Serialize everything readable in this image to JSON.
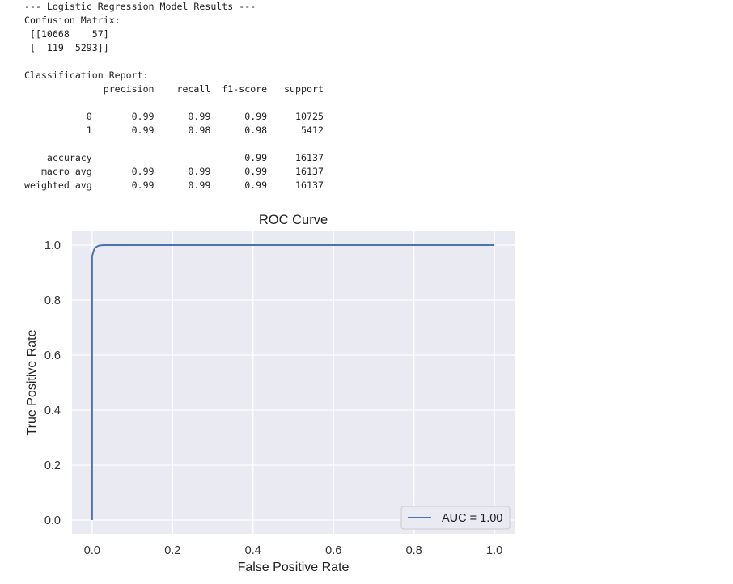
{
  "output": {
    "lines": [
      "--- Logistic Regression Model Results ---",
      "Confusion Matrix:",
      " [[10668    57]",
      " [  119  5293]]",
      "",
      "Classification Report:",
      "              precision    recall  f1-score   support",
      "",
      "           0       0.99      0.99      0.99     10725",
      "           1       0.99      0.98      0.98      5412",
      "",
      "    accuracy                           0.99     16137",
      "   macro avg       0.99      0.99      0.99     16137",
      "weighted avg       0.99      0.99      0.99     16137"
    ]
  },
  "chart_data": {
    "type": "line",
    "title": "ROC Curve",
    "xlabel": "False Positive Rate",
    "ylabel": "True Positive Rate",
    "xlim": [
      -0.05,
      1.05
    ],
    "ylim": [
      -0.05,
      1.05
    ],
    "xticks": [
      0.0,
      0.2,
      0.4,
      0.6,
      0.8,
      1.0
    ],
    "xtick_labels": [
      "0.0",
      "0.2",
      "0.4",
      "0.6",
      "0.8",
      "1.0"
    ],
    "yticks": [
      0.0,
      0.2,
      0.4,
      0.6,
      0.8,
      1.0
    ],
    "ytick_labels": [
      "0.0",
      "0.2",
      "0.4",
      "0.6",
      "0.8",
      "1.0"
    ],
    "grid": true,
    "legend_position": "lower-right",
    "series": [
      {
        "name": "AUC = 1.00",
        "color": "#4c72b0",
        "x": [
          0.0,
          0.0,
          0.002,
          0.004,
          0.007,
          0.01,
          0.015,
          0.02,
          0.03,
          0.05,
          1.0
        ],
        "y": [
          0.0,
          0.96,
          0.97,
          0.98,
          0.99,
          0.993,
          0.997,
          0.999,
          1.0,
          1.0,
          1.0
        ]
      }
    ]
  }
}
